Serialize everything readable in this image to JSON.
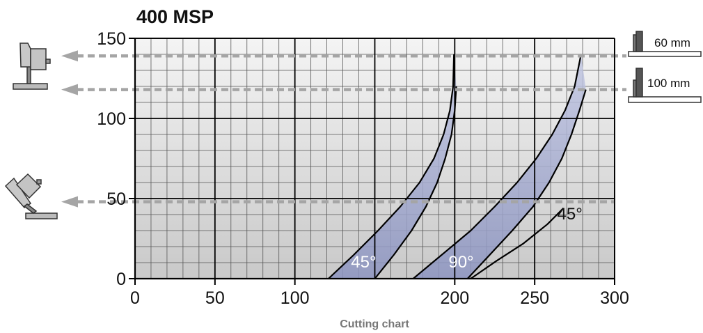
{
  "chart_data": {
    "type": "line",
    "title": "400 MSP",
    "caption": "Cutting chart",
    "xlim": [
      0,
      300
    ],
    "ylim": [
      0,
      150
    ],
    "x_ticks": [
      "0",
      "50",
      "100",
      "200",
      "250",
      "300"
    ],
    "y_ticks": [
      "0",
      "50",
      "100",
      "150"
    ],
    "grid": true,
    "series": [
      {
        "band": "45-left",
        "points": [
          [
            121,
            0
          ],
          [
            137,
            15
          ],
          [
            152,
            30
          ],
          [
            166,
            45
          ],
          [
            178,
            60
          ],
          [
            187,
            75
          ],
          [
            193,
            90
          ],
          [
            197,
            105
          ],
          [
            199,
            120
          ],
          [
            199.5,
            140
          ]
        ]
      },
      {
        "band": "45-right",
        "points": [
          [
            150,
            0
          ],
          [
            162,
            15
          ],
          [
            173,
            30
          ],
          [
            182,
            45
          ],
          [
            189,
            60
          ],
          [
            194,
            75
          ],
          [
            198,
            90
          ],
          [
            200,
            105
          ],
          [
            201,
            120
          ]
        ]
      },
      {
        "band": "90-left",
        "points": [
          [
            174,
            0
          ],
          [
            192,
            15
          ],
          [
            210,
            30
          ],
          [
            225,
            45
          ],
          [
            239,
            60
          ],
          [
            251,
            75
          ],
          [
            261,
            90
          ],
          [
            269,
            105
          ],
          [
            275,
            120
          ],
          [
            279,
            140
          ]
        ]
      },
      {
        "band": "90-right",
        "points": [
          [
            208,
            0
          ],
          [
            222,
            15
          ],
          [
            236,
            30
          ],
          [
            249,
            45
          ],
          [
            259,
            60
          ],
          [
            267,
            75
          ],
          [
            273,
            90
          ],
          [
            278,
            105
          ],
          [
            282,
            118
          ]
        ]
      },
      {
        "band": "45-lower",
        "points": [
          [
            210,
            0
          ],
          [
            226,
            11
          ],
          [
            243,
            22
          ],
          [
            258,
            34
          ],
          [
            268,
            44
          ]
        ]
      }
    ],
    "reference_lines": [
      {
        "y": 139,
        "label": "60 mm"
      },
      {
        "y": 118,
        "label": "100 mm"
      },
      {
        "y": 48,
        "label": ""
      }
    ],
    "annotations": [
      {
        "text": "45°",
        "x": 143,
        "y": 7
      },
      {
        "text": "90°",
        "x": 204,
        "y": 7
      },
      {
        "text": "45°",
        "x": 272,
        "y": 37
      }
    ]
  }
}
